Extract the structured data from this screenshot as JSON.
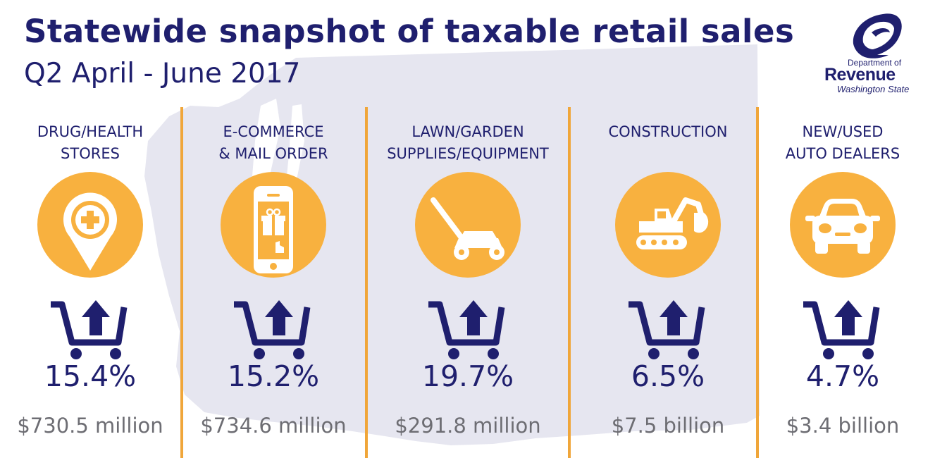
{
  "header": {
    "title": "Statewide snapshot of taxable retail sales",
    "subtitle": "Q2 April - June 2017"
  },
  "logo": {
    "line1": "Department of",
    "line2": "Revenue",
    "line3": "Washington State"
  },
  "colors": {
    "navy": "#1f1f6e",
    "orange": "#f8b13f",
    "divider": "#f0a63a",
    "map": "#e6e6f0",
    "gray_text": "#6d6d73"
  },
  "categories": [
    {
      "label_lines": [
        "DRUG/HEALTH",
        "STORES"
      ],
      "icon": "map-pin-plus-icon",
      "change": "15.4%",
      "amount": "$730.5 million"
    },
    {
      "label_lines": [
        "E-COMMERCE",
        "& MAIL ORDER"
      ],
      "icon": "smartphone-gift-icon",
      "change": "15.2%",
      "amount": "$734.6 million"
    },
    {
      "label_lines": [
        "LAWN/GARDEN",
        "SUPPLIES/EQUIPMENT"
      ],
      "icon": "lawn-mower-icon",
      "change": "19.7%",
      "amount": "$291.8 million"
    },
    {
      "label_lines": [
        "CONSTRUCTION"
      ],
      "icon": "excavator-icon",
      "change": "6.5%",
      "amount": "$7.5 billion"
    },
    {
      "label_lines": [
        "NEW/USED",
        "AUTO DEALERS"
      ],
      "icon": "car-icon",
      "change": "4.7%",
      "amount": "$3.4 billion"
    }
  ],
  "trend_icon": "cart-up-arrow-icon"
}
